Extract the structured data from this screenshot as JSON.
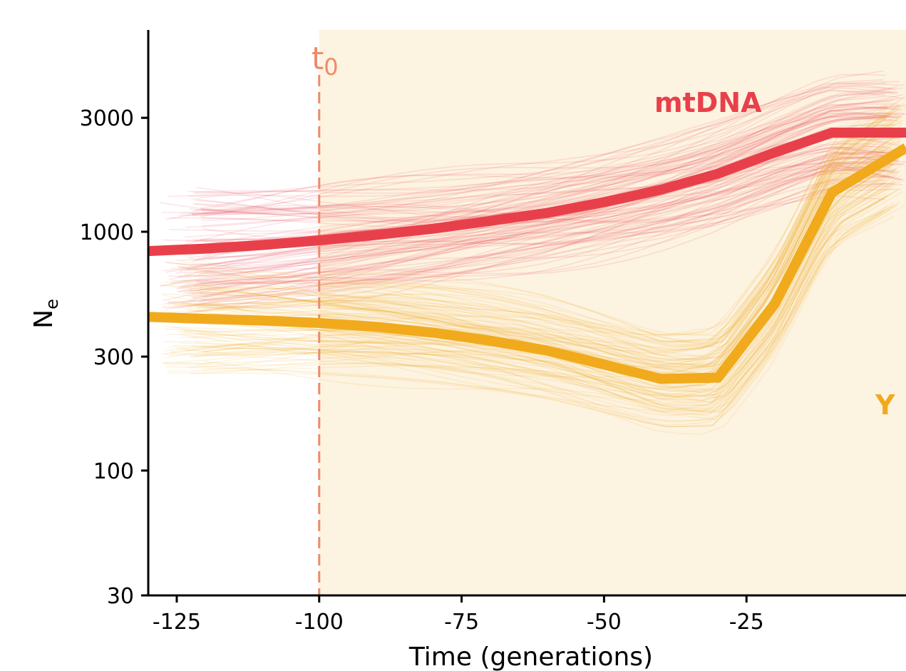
{
  "chart_data": {
    "type": "line",
    "xlabel": "Time (generations)",
    "ylabel": "N",
    "ylabel_sub": "e",
    "xlim": [
      -130,
      3
    ],
    "ylim": [
      30,
      7000
    ],
    "yscale": "log",
    "x_ticks": [
      -125,
      -100,
      -75,
      -50,
      -25
    ],
    "x_tick_labels": [
      "-125",
      "-100",
      "-75",
      "-50",
      "-25"
    ],
    "y_ticks": [
      30,
      100,
      300,
      1000,
      3000
    ],
    "y_tick_labels": [
      "30",
      "100",
      "300",
      "1000",
      "3000"
    ],
    "grid": false,
    "shaded_region": {
      "x_start": -100,
      "x_end": 3,
      "color": "#fdf3e1"
    },
    "vline": {
      "x": -100,
      "label": "t",
      "label_sub": "0",
      "color": "#ef8a6a"
    },
    "series": [
      {
        "name": "mtDNA",
        "color": "#e8404a",
        "x": [
          -130,
          -120,
          -110,
          -100,
          -90,
          -80,
          -70,
          -60,
          -50,
          -40,
          -30,
          -20,
          -10,
          3
        ],
        "values": [
          830,
          850,
          880,
          920,
          970,
          1030,
          1110,
          1200,
          1330,
          1500,
          1750,
          2150,
          2600,
          2600
        ]
      },
      {
        "name": "Y",
        "color": "#f0aa1c",
        "x": [
          -130,
          -120,
          -110,
          -100,
          -90,
          -80,
          -70,
          -60,
          -50,
          -40,
          -30,
          -20,
          -10,
          3
        ],
        "values": [
          440,
          432,
          425,
          415,
          400,
          378,
          350,
          318,
          278,
          242,
          245,
          500,
          1460,
          2250
        ]
      }
    ]
  }
}
